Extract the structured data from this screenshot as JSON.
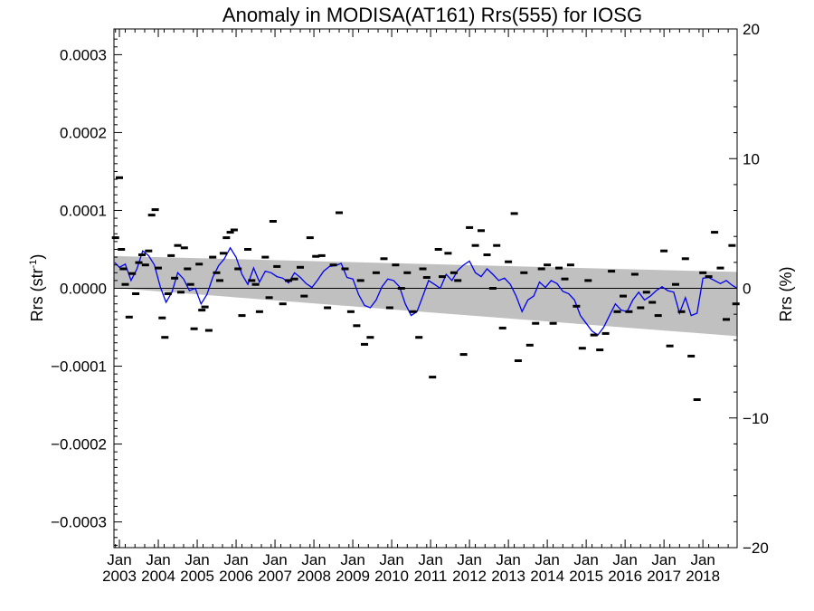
{
  "chart_data": {
    "type": "line",
    "title": "Anomaly in MODISA(AT161) Rrs(555) for IOSG",
    "ylabel_left": {
      "main": "Rrs (str",
      "sup": "-1",
      "close": ")"
    },
    "ylabel_right": "Rrs (%)",
    "xlim": [
      2002.86,
      2018.88
    ],
    "ylim_left": [
      -0.000333,
      0.000333
    ],
    "ylim_right": [
      -20,
      20
    ],
    "x_ticks": [
      {
        "value": 2003.0,
        "top": "Jan",
        "bottom": "2003"
      },
      {
        "value": 2004.0,
        "top": "Jan",
        "bottom": "2004"
      },
      {
        "value": 2005.0,
        "top": "Jan",
        "bottom": "2005"
      },
      {
        "value": 2006.0,
        "top": "Jan",
        "bottom": "2006"
      },
      {
        "value": 2007.0,
        "top": "Jan",
        "bottom": "2007"
      },
      {
        "value": 2008.0,
        "top": "Jan",
        "bottom": "2008"
      },
      {
        "value": 2009.0,
        "top": "Jan",
        "bottom": "2009"
      },
      {
        "value": 2010.0,
        "top": "Jan",
        "bottom": "2010"
      },
      {
        "value": 2011.0,
        "top": "Jan",
        "bottom": "2011"
      },
      {
        "value": 2012.0,
        "top": "Jan",
        "bottom": "2012"
      },
      {
        "value": 2013.0,
        "top": "Jan",
        "bottom": "2013"
      },
      {
        "value": 2014.0,
        "top": "Jan",
        "bottom": "2014"
      },
      {
        "value": 2015.0,
        "top": "Jan",
        "bottom": "2015"
      },
      {
        "value": 2016.0,
        "top": "Jan",
        "bottom": "2016"
      },
      {
        "value": 2017.0,
        "top": "Jan",
        "bottom": "2017"
      },
      {
        "value": 2018.0,
        "top": "Jan",
        "bottom": "2018"
      }
    ],
    "y_ticks_left": [
      {
        "value": 0.0003,
        "label": "0.0003"
      },
      {
        "value": 0.0002,
        "label": "0.0002"
      },
      {
        "value": 0.0001,
        "label": "0.0001"
      },
      {
        "value": 0.0,
        "label": "0.0000"
      },
      {
        "value": -0.0001,
        "label": "−0.0001"
      },
      {
        "value": -0.0002,
        "label": "−0.0002"
      },
      {
        "value": -0.0003,
        "label": "−0.0003"
      }
    ],
    "y_ticks_right": [
      {
        "value": 20,
        "label": "20"
      },
      {
        "value": 10,
        "label": "10"
      },
      {
        "value": 0,
        "label": "0"
      },
      {
        "value": -10,
        "label": "−10"
      },
      {
        "value": -20,
        "label": "−20"
      }
    ],
    "band": {
      "x": [
        2002.86,
        2018.88
      ],
      "upper": [
        4.15e-05,
        2.1e-05
      ],
      "lower": [
        5e-07,
        -6.15e-05
      ]
    },
    "zero_line": 0,
    "smooth_series": {
      "name": "",
      "x": [
        2002.88,
        2003.0,
        2003.15,
        2003.3,
        2003.45,
        2003.6,
        2003.75,
        2003.9,
        2004.05,
        2004.2,
        2004.35,
        2004.5,
        2004.65,
        2004.8,
        2004.95,
        2005.1,
        2005.25,
        2005.4,
        2005.55,
        2005.7,
        2005.85,
        2006.0,
        2006.15,
        2006.3,
        2006.45,
        2006.6,
        2006.75,
        2006.9,
        2007.05,
        2007.2,
        2007.35,
        2007.5,
        2007.65,
        2007.8,
        2007.95,
        2008.1,
        2008.25,
        2008.4,
        2008.55,
        2008.7,
        2008.85,
        2009.0,
        2009.15,
        2009.3,
        2009.45,
        2009.6,
        2009.75,
        2009.9,
        2010.05,
        2010.2,
        2010.35,
        2010.5,
        2010.65,
        2010.8,
        2010.95,
        2011.1,
        2011.25,
        2011.4,
        2011.55,
        2011.7,
        2011.85,
        2012.0,
        2012.15,
        2012.3,
        2012.45,
        2012.6,
        2012.75,
        2012.9,
        2013.05,
        2013.2,
        2013.35,
        2013.5,
        2013.65,
        2013.8,
        2013.95,
        2014.1,
        2014.25,
        2014.4,
        2014.55,
        2014.7,
        2014.85,
        2015.0,
        2015.15,
        2015.3,
        2015.45,
        2015.6,
        2015.75,
        2015.9,
        2016.05,
        2016.2,
        2016.35,
        2016.5,
        2016.65,
        2016.8,
        2016.95,
        2017.1,
        2017.25,
        2017.4,
        2017.55,
        2017.7,
        2017.85,
        2018.0,
        2018.15,
        2018.3,
        2018.45,
        2018.6,
        2018.75,
        2018.88
      ],
      "y": [
        3.3e-05,
        2.7e-05,
        3.1e-05,
        1e-05,
        2.5e-05,
        4.8e-05,
        4.2e-05,
        3e-05,
        2e-06,
        -1.8e-05,
        -5e-06,
        2e-05,
        1.2e-05,
        -3e-06,
        0.0,
        -2e-05,
        -8e-06,
        1.4e-05,
        2.9e-05,
        3.8e-05,
        5.2e-05,
        4e-05,
        1.8e-05,
        5e-06,
        2.6e-05,
        8e-06,
        2.2e-05,
        2e-05,
        1.5e-05,
        1.3e-05,
        7e-06,
        2e-05,
        1.4e-05,
        6e-06,
        1e-06,
        1.1e-05,
        2.2e-05,
        2.8e-05,
        2.9e-05,
        3.2e-05,
        1.4e-05,
        1.2e-05,
        -8e-06,
        -2.2e-05,
        -2.5e-05,
        -1.5e-05,
        2e-06,
        1.2e-05,
        1e-05,
        2e-06,
        -2e-05,
        -3.5e-05,
        -3e-05,
        -1e-05,
        1e-05,
        5e-06,
        0.0,
        1.8e-05,
        1e-05,
        2.3e-05,
        3e-05,
        3.5e-05,
        2e-05,
        1.5e-05,
        2.5e-05,
        1.8e-05,
        1e-05,
        1.3e-05,
        5e-06,
        -1e-05,
        -3e-05,
        -1.5e-05,
        -1e-05,
        8e-06,
        1e-06,
        1e-05,
        6e-06,
        -4e-06,
        -7e-06,
        -1.5e-05,
        -3.5e-05,
        -4.5e-05,
        -5.5e-05,
        -6e-05,
        -5e-05,
        -3.5e-05,
        -2e-05,
        -2.8e-05,
        -3e-05,
        -1.5e-05,
        -5e-06,
        -1.5e-05,
        -1e-05,
        -3e-06,
        2e-06,
        -3e-06,
        -5e-06,
        -3.2e-05,
        -1.2e-05,
        -3.5e-05,
        -3.2e-05,
        1.3e-05,
        1.4e-05,
        1e-05,
        6e-06,
        1e-05,
        4e-06,
        0.0
      ]
    },
    "points": {
      "x": [
        2002.9,
        2003.0,
        2003.05,
        2003.1,
        2003.15,
        2003.25,
        2003.33,
        2003.42,
        2003.5,
        2003.58,
        2003.67,
        2003.75,
        2003.83,
        2003.92,
        2004.0,
        2004.1,
        2004.17,
        2004.25,
        2004.33,
        2004.42,
        2004.5,
        2004.58,
        2004.67,
        2004.75,
        2004.83,
        2004.92,
        2005.05,
        2005.12,
        2005.2,
        2005.3,
        2005.4,
        2005.5,
        2005.58,
        2005.67,
        2005.75,
        2005.85,
        2005.95,
        2006.05,
        2006.15,
        2006.3,
        2006.4,
        2006.5,
        2006.6,
        2006.75,
        2006.85,
        2006.95,
        2007.05,
        2007.2,
        2007.35,
        2007.5,
        2007.65,
        2007.75,
        2007.9,
        2008.05,
        2008.2,
        2008.35,
        2008.5,
        2008.65,
        2008.8,
        2008.95,
        2009.1,
        2009.2,
        2009.3,
        2009.45,
        2009.6,
        2009.8,
        2009.95,
        2010.1,
        2010.25,
        2010.4,
        2010.55,
        2010.7,
        2010.8,
        2010.9,
        2011.05,
        2011.2,
        2011.3,
        2011.45,
        2011.6,
        2011.7,
        2011.85,
        2012.0,
        2012.15,
        2012.3,
        2012.45,
        2012.6,
        2012.7,
        2012.85,
        2013.0,
        2013.15,
        2013.25,
        2013.4,
        2013.55,
        2013.7,
        2013.85,
        2014.0,
        2014.15,
        2014.3,
        2014.45,
        2014.6,
        2014.75,
        2014.9,
        2015.05,
        2015.2,
        2015.35,
        2015.5,
        2015.65,
        2015.8,
        2015.95,
        2016.1,
        2016.25,
        2016.4,
        2016.55,
        2016.7,
        2016.85,
        2017.0,
        2017.15,
        2017.3,
        2017.45,
        2017.55,
        2017.7,
        2017.85,
        2018.0,
        2018.15,
        2018.3,
        2018.45,
        2018.6,
        2018.75,
        2018.85
      ],
      "y": [
        6.5e-05,
        0.000142,
        5e-05,
        2.5e-05,
        5e-06,
        -3.7e-05,
        1.9e-05,
        -7e-06,
        3.3e-05,
        4.3e-05,
        3e-05,
        4.8e-05,
        9.4e-05,
        0.000101,
        2.6e-05,
        -3.8e-05,
        -6.3e-05,
        -7e-06,
        4.2e-05,
        1.3e-05,
        5.5e-05,
        -5e-06,
        5.2e-05,
        2.5e-05,
        5e-06,
        -5.2e-05,
        3.1e-05,
        -2.8e-05,
        -2.4e-05,
        -5.4e-05,
        4e-05,
        2e-05,
        1e-05,
        4.5e-05,
        6.5e-05,
        7.2e-05,
        7.5e-05,
        2.5e-05,
        -3.5e-05,
        5e-05,
        1e-05,
        5e-06,
        -3e-05,
        4e-05,
        -1.2e-05,
        8.6e-05,
        2.8e-05,
        -2e-05,
        1e-05,
        1.2e-05,
        2.7e-05,
        -1e-05,
        6.5e-05,
        4.1e-05,
        4.2e-05,
        -2.5e-05,
        3e-05,
        9.7e-05,
        2.5e-05,
        -3e-05,
        -4.8e-05,
        1e-05,
        -7.2e-05,
        -6.3e-05,
        2e-05,
        3.8e-05,
        -2.5e-05,
        3e-05,
        0.0,
        2e-05,
        -3e-05,
        -6.3e-05,
        2.5e-05,
        1.4e-05,
        -0.000114,
        5e-05,
        1.5e-05,
        4.5e-05,
        2e-05,
        1e-05,
        -8.5e-05,
        7.8e-05,
        5.5e-05,
        7.4e-05,
        4.3e-05,
        0.0,
        5.5e-05,
        -5.1e-05,
        3.4e-05,
        9.6e-05,
        -9.3e-05,
        2e-05,
        -7.3e-05,
        -4.5e-05,
        2.5e-05,
        3e-05,
        -4.5e-05,
        2.6e-05,
        1.2e-05,
        3e-05,
        -2.3e-05,
        -7.7e-05,
        1e-05,
        -6e-05,
        -7.9e-05,
        -5.8e-05,
        2.2e-05,
        -3e-05,
        -1e-05,
        -3e-05,
        1.8e-05,
        -2.5e-05,
        -5e-06,
        -1.8e-05,
        -3.5e-05,
        4.8e-05,
        -7.4e-05,
        5e-06,
        -3e-05,
        3.8e-05,
        -8.7e-05,
        -0.000143,
        2e-05,
        1.5e-05,
        7.2e-05,
        2.6e-05,
        -4e-05,
        5.5e-05,
        -2e-05
      ]
    },
    "colors": {
      "band": "#c0c0c0",
      "smooth_line": "#0000ee",
      "points": "#000000",
      "zero_line": "#000000",
      "axes": "#000000"
    },
    "grid": false,
    "legend": "none"
  }
}
